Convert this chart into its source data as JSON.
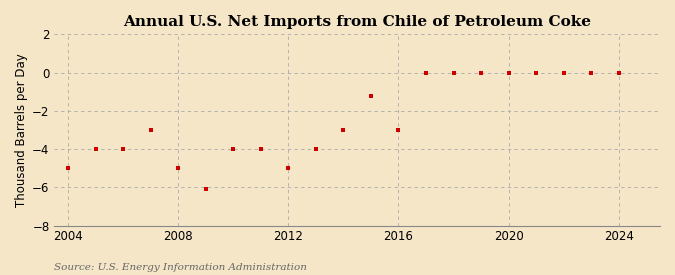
{
  "title": "Annual U.S. Net Imports from Chile of Petroleum Coke",
  "ylabel": "Thousand Barrels per Day",
  "source": "Source: U.S. Energy Information Administration",
  "background_color": "#f5e6c8",
  "plot_bg_color": "#f5e6c8",
  "marker_color": "#cc0000",
  "years": [
    2004,
    2005,
    2006,
    2007,
    2008,
    2009,
    2010,
    2011,
    2012,
    2013,
    2014,
    2015,
    2016,
    2017,
    2018,
    2019,
    2020,
    2021,
    2022,
    2023,
    2024
  ],
  "values": [
    -5.0,
    -4.0,
    -4.0,
    -3.0,
    -5.0,
    -6.1,
    -4.0,
    -4.0,
    -5.0,
    -4.0,
    -3.0,
    -1.2,
    -3.0,
    0.0,
    0.0,
    0.0,
    0.0,
    0.0,
    0.0,
    0.0,
    0.0
  ],
  "ylim": [
    -8,
    2
  ],
  "yticks": [
    -8,
    -6,
    -4,
    -2,
    0,
    2
  ],
  "xlim": [
    2003.5,
    2025.5
  ],
  "xticks": [
    2004,
    2008,
    2012,
    2016,
    2020,
    2024
  ],
  "grid_color": "#aaaaaa",
  "title_fontsize": 11,
  "axis_fontsize": 8.5,
  "source_fontsize": 7.5
}
